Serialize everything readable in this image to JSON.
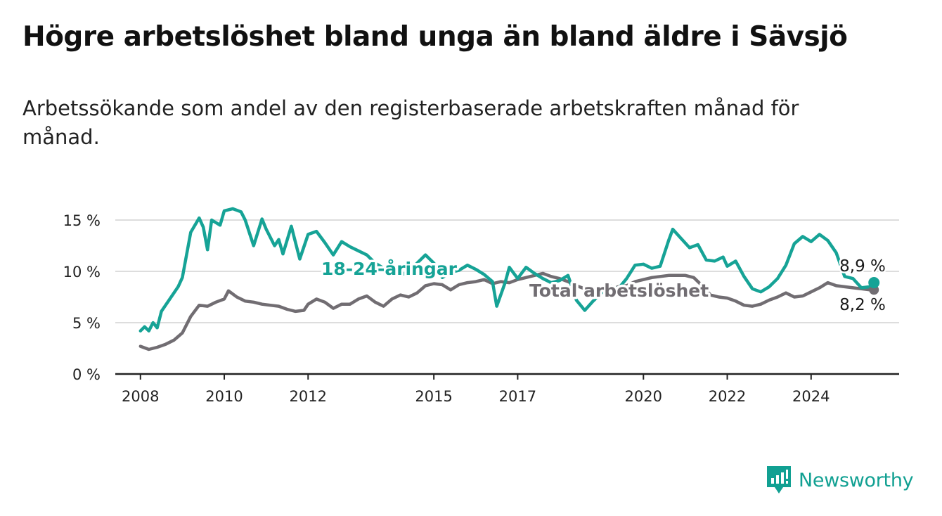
{
  "title": "Högre arbetslöshet bland unga än bland äldre i Sävsjö",
  "subtitle": "Arbetssökande som andel av den registerbaserade arbetskraften månad för månad.",
  "brand": "Newsworthy",
  "colors": {
    "youth": "#16a396",
    "total": "#716d72",
    "axis": "#222222",
    "grid": "#dddddd",
    "brand": "#11a092"
  },
  "chart_data": {
    "type": "line",
    "title": "Högre arbetslöshet bland unga än bland äldre i Sävsjö",
    "subtitle": "Arbetssökande som andel av den registerbaserade arbetskraften månad för månad.",
    "xlabel": "",
    "ylabel": "",
    "x_range": [
      2007.4,
      2026.1
    ],
    "ylim": [
      0,
      15
    ],
    "y_ticks": [
      0,
      5,
      10,
      15
    ],
    "y_tick_labels": [
      "0 %",
      "5 %",
      "10 %",
      "15 %"
    ],
    "x_ticks": [
      2008,
      2010,
      2012,
      2015,
      2017,
      2020,
      2022,
      2024
    ],
    "x_tick_labels": [
      "2008",
      "2010",
      "2012",
      "2015",
      "2017",
      "2020",
      "2022",
      "2024"
    ],
    "grid": "horizontal",
    "series": [
      {
        "name": "Total arbetslöshet",
        "color": "#716d72",
        "end_label": "8,2 %",
        "points": [
          [
            2008.0,
            2.7
          ],
          [
            2008.2,
            2.4
          ],
          [
            2008.4,
            2.6
          ],
          [
            2008.6,
            2.9
          ],
          [
            2008.8,
            3.3
          ],
          [
            2009.0,
            4.0
          ],
          [
            2009.2,
            5.6
          ],
          [
            2009.4,
            6.7
          ],
          [
            2009.6,
            6.6
          ],
          [
            2009.8,
            7.0
          ],
          [
            2010.0,
            7.3
          ],
          [
            2010.1,
            8.1
          ],
          [
            2010.3,
            7.5
          ],
          [
            2010.5,
            7.1
          ],
          [
            2010.7,
            7.0
          ],
          [
            2010.9,
            6.8
          ],
          [
            2011.1,
            6.7
          ],
          [
            2011.3,
            6.6
          ],
          [
            2011.5,
            6.3
          ],
          [
            2011.7,
            6.1
          ],
          [
            2011.9,
            6.2
          ],
          [
            2012.0,
            6.8
          ],
          [
            2012.2,
            7.3
          ],
          [
            2012.4,
            7.0
          ],
          [
            2012.6,
            6.4
          ],
          [
            2012.8,
            6.8
          ],
          [
            2013.0,
            6.8
          ],
          [
            2013.2,
            7.3
          ],
          [
            2013.4,
            7.6
          ],
          [
            2013.6,
            7.0
          ],
          [
            2013.8,
            6.6
          ],
          [
            2014.0,
            7.3
          ],
          [
            2014.2,
            7.7
          ],
          [
            2014.4,
            7.5
          ],
          [
            2014.6,
            7.9
          ],
          [
            2014.8,
            8.6
          ],
          [
            2015.0,
            8.8
          ],
          [
            2015.2,
            8.7
          ],
          [
            2015.4,
            8.2
          ],
          [
            2015.6,
            8.7
          ],
          [
            2015.8,
            8.9
          ],
          [
            2016.0,
            9.0
          ],
          [
            2016.2,
            9.2
          ],
          [
            2016.4,
            8.8
          ],
          [
            2016.6,
            9.0
          ],
          [
            2016.8,
            8.9
          ],
          [
            2017.0,
            9.2
          ],
          [
            2017.2,
            9.4
          ],
          [
            2017.4,
            9.6
          ],
          [
            2017.6,
            9.8
          ],
          [
            2017.8,
            9.5
          ],
          [
            2018.0,
            9.3
          ],
          [
            2018.2,
            9.0
          ],
          [
            2018.4,
            8.6
          ],
          [
            2018.6,
            8.3
          ],
          [
            2018.8,
            8.2
          ],
          [
            2019.0,
            8.0
          ],
          [
            2019.2,
            8.2
          ],
          [
            2019.4,
            8.5
          ],
          [
            2019.6,
            8.6
          ],
          [
            2019.8,
            9.0
          ],
          [
            2020.0,
            9.2
          ],
          [
            2020.2,
            9.4
          ],
          [
            2020.4,
            9.5
          ],
          [
            2020.6,
            9.6
          ],
          [
            2020.8,
            9.6
          ],
          [
            2021.0,
            9.6
          ],
          [
            2021.2,
            9.4
          ],
          [
            2021.4,
            8.6
          ],
          [
            2021.6,
            7.7
          ],
          [
            2021.8,
            7.5
          ],
          [
            2022.0,
            7.4
          ],
          [
            2022.2,
            7.1
          ],
          [
            2022.4,
            6.7
          ],
          [
            2022.6,
            6.6
          ],
          [
            2022.8,
            6.8
          ],
          [
            2023.0,
            7.2
          ],
          [
            2023.2,
            7.5
          ],
          [
            2023.4,
            7.9
          ],
          [
            2023.6,
            7.5
          ],
          [
            2023.8,
            7.6
          ],
          [
            2024.0,
            8.0
          ],
          [
            2024.2,
            8.4
          ],
          [
            2024.4,
            8.9
          ],
          [
            2024.6,
            8.6
          ],
          [
            2024.8,
            8.5
          ],
          [
            2025.0,
            8.4
          ],
          [
            2025.2,
            8.3
          ],
          [
            2025.4,
            8.2
          ],
          [
            2025.5,
            8.2
          ]
        ]
      },
      {
        "name": "18-24-åringar",
        "color": "#16a396",
        "end_label": "8,9 %",
        "points": [
          [
            2008.0,
            4.2
          ],
          [
            2008.1,
            4.6
          ],
          [
            2008.2,
            4.2
          ],
          [
            2008.3,
            5.0
          ],
          [
            2008.4,
            4.5
          ],
          [
            2008.5,
            6.1
          ],
          [
            2008.7,
            7.3
          ],
          [
            2008.9,
            8.5
          ],
          [
            2009.0,
            9.4
          ],
          [
            2009.2,
            13.8
          ],
          [
            2009.4,
            15.2
          ],
          [
            2009.5,
            14.3
          ],
          [
            2009.6,
            12.1
          ],
          [
            2009.7,
            15.0
          ],
          [
            2009.9,
            14.5
          ],
          [
            2010.0,
            15.9
          ],
          [
            2010.2,
            16.1
          ],
          [
            2010.4,
            15.8
          ],
          [
            2010.5,
            15.0
          ],
          [
            2010.7,
            12.5
          ],
          [
            2010.9,
            15.1
          ],
          [
            2011.0,
            14.1
          ],
          [
            2011.2,
            12.5
          ],
          [
            2011.3,
            13.1
          ],
          [
            2011.4,
            11.7
          ],
          [
            2011.6,
            14.4
          ],
          [
            2011.8,
            11.2
          ],
          [
            2012.0,
            13.6
          ],
          [
            2012.2,
            13.9
          ],
          [
            2012.4,
            12.8
          ],
          [
            2012.6,
            11.6
          ],
          [
            2012.8,
            12.9
          ],
          [
            2013.0,
            12.4
          ],
          [
            2013.2,
            12.0
          ],
          [
            2013.4,
            11.6
          ],
          [
            2013.6,
            10.8
          ],
          [
            2013.8,
            10.3
          ],
          [
            2014.0,
            9.9
          ],
          [
            2014.2,
            9.6
          ],
          [
            2014.4,
            10.0
          ],
          [
            2014.6,
            10.8
          ],
          [
            2014.8,
            11.6
          ],
          [
            2015.0,
            10.8
          ],
          [
            2015.2,
            9.4
          ],
          [
            2015.4,
            9.9
          ],
          [
            2015.6,
            10.1
          ],
          [
            2015.8,
            10.6
          ],
          [
            2016.0,
            10.2
          ],
          [
            2016.2,
            9.7
          ],
          [
            2016.4,
            9.0
          ],
          [
            2016.5,
            6.6
          ],
          [
            2016.7,
            8.9
          ],
          [
            2016.8,
            10.4
          ],
          [
            2017.0,
            9.3
          ],
          [
            2017.2,
            10.4
          ],
          [
            2017.4,
            9.8
          ],
          [
            2017.6,
            9.3
          ],
          [
            2017.8,
            8.9
          ],
          [
            2018.0,
            9.1
          ],
          [
            2018.2,
            9.6
          ],
          [
            2018.4,
            7.2
          ],
          [
            2018.6,
            6.2
          ],
          [
            2018.8,
            7.1
          ],
          [
            2019.0,
            7.9
          ],
          [
            2019.2,
            8.6
          ],
          [
            2019.4,
            8.3
          ],
          [
            2019.6,
            9.3
          ],
          [
            2019.8,
            10.6
          ],
          [
            2020.0,
            10.7
          ],
          [
            2020.2,
            10.3
          ],
          [
            2020.4,
            10.5
          ],
          [
            2020.6,
            13.0
          ],
          [
            2020.7,
            14.1
          ],
          [
            2020.9,
            13.2
          ],
          [
            2021.1,
            12.3
          ],
          [
            2021.3,
            12.6
          ],
          [
            2021.5,
            11.1
          ],
          [
            2021.7,
            11.0
          ],
          [
            2021.9,
            11.4
          ],
          [
            2022.0,
            10.5
          ],
          [
            2022.2,
            11.0
          ],
          [
            2022.4,
            9.5
          ],
          [
            2022.6,
            8.3
          ],
          [
            2022.8,
            8.0
          ],
          [
            2023.0,
            8.5
          ],
          [
            2023.2,
            9.3
          ],
          [
            2023.4,
            10.6
          ],
          [
            2023.6,
            12.7
          ],
          [
            2023.8,
            13.4
          ],
          [
            2024.0,
            12.9
          ],
          [
            2024.2,
            13.6
          ],
          [
            2024.4,
            13.0
          ],
          [
            2024.6,
            11.8
          ],
          [
            2024.8,
            9.5
          ],
          [
            2025.0,
            9.3
          ],
          [
            2025.2,
            8.4
          ],
          [
            2025.4,
            8.5
          ],
          [
            2025.5,
            8.9
          ]
        ]
      }
    ]
  }
}
